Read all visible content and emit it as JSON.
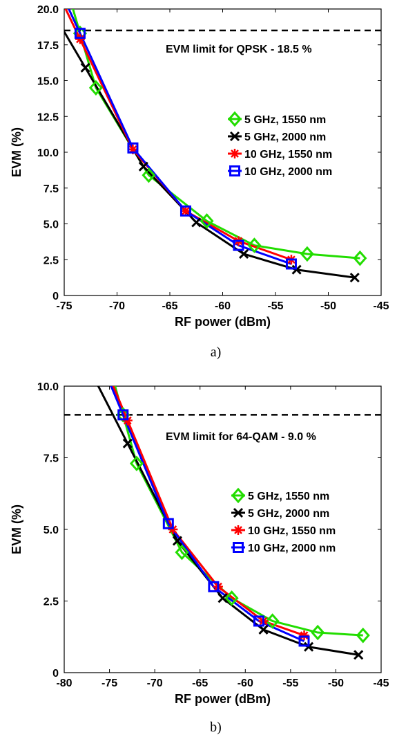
{
  "chart_data": [
    {
      "type": "line",
      "caption": "a)",
      "xlabel": "RF power (dBm)",
      "ylabel": "EVM (%)",
      "xlim": [
        -75,
        -45
      ],
      "ylim": [
        0,
        20
      ],
      "xticks": [
        "-75",
        "-70",
        "-65",
        "-60",
        "-55",
        "-50",
        "-45"
      ],
      "xtick_values": [
        -75,
        -70,
        -65,
        -60,
        -55,
        -50,
        -45
      ],
      "yticks": [
        "0",
        "2.5",
        "5.0",
        "7.5",
        "10.0",
        "12.5",
        "15.0",
        "17.5",
        "20.0"
      ],
      "ytick_values": [
        0,
        2.5,
        5,
        7.5,
        10,
        12.5,
        15,
        17.5,
        20
      ],
      "grid": false,
      "legend_placement": "right",
      "limit": {
        "value": 18.5,
        "label": "EVM limit for QPSK - 18.5 %"
      },
      "series": [
        {
          "name": "5 GHz, 1550 nm",
          "color": "#22dd00",
          "marker": "diamond",
          "x": [
            -73.5,
            -72,
            -67,
            -61.5,
            -57,
            -52,
            -47
          ],
          "y": [
            18.3,
            14.5,
            8.4,
            5.2,
            3.5,
            2.9,
            2.6
          ]
        },
        {
          "name": "5 GHz, 2000 nm",
          "color": "#000000",
          "marker": "x",
          "x": [
            -73,
            -67.5,
            -62.5,
            -58,
            -53,
            -47.5
          ],
          "y": [
            15.9,
            9.0,
            5.1,
            2.9,
            1.8,
            1.25
          ]
        },
        {
          "name": "10 GHz, 1550 nm",
          "color": "#ff0000",
          "marker": "asterisk",
          "x": [
            -73.5,
            -68.5,
            -63.5,
            -58.5,
            -53.5
          ],
          "y": [
            17.9,
            10.2,
            5.9,
            3.8,
            2.5
          ]
        },
        {
          "name": "10 GHz, 2000 nm",
          "color": "#0000ff",
          "marker": "square",
          "x": [
            -73.5,
            -68.5,
            -63.5,
            -58.5,
            -53.5
          ],
          "y": [
            18.3,
            10.3,
            5.9,
            3.5,
            2.2
          ]
        }
      ]
    },
    {
      "type": "line",
      "caption": "b)",
      "xlabel": "RF power (dBm)",
      "ylabel": "EVM (%)",
      "xlim": [
        -80,
        -45
      ],
      "ylim": [
        0,
        10
      ],
      "xticks": [
        "-80",
        "-75",
        "-70",
        "-65",
        "-60",
        "-55",
        "-50",
        "-45"
      ],
      "xtick_values": [
        -80,
        -75,
        -70,
        -65,
        -60,
        -55,
        -50,
        -45
      ],
      "yticks": [
        "0",
        "2.5",
        "5.0",
        "7.5",
        "10.0"
      ],
      "ytick_values": [
        0,
        2.5,
        5,
        7.5,
        10
      ],
      "grid": false,
      "legend_placement": "right",
      "limit": {
        "value": 9.0,
        "label": "EVM limit for 64-QAM - 9.0 %"
      },
      "series": [
        {
          "name": "5 GHz, 1550 nm",
          "color": "#22dd00",
          "marker": "diamond",
          "x": [
            -73.5,
            -72,
            -67,
            -61.5,
            -57,
            -52,
            -47
          ],
          "y": [
            9.0,
            7.3,
            4.2,
            2.6,
            1.8,
            1.4,
            1.3
          ]
        },
        {
          "name": "5 GHz, 2000 nm",
          "color": "#000000",
          "marker": "x",
          "x": [
            -73,
            -67.5,
            -62.5,
            -58,
            -53,
            -47.5
          ],
          "y": [
            8.0,
            4.6,
            2.6,
            1.5,
            0.9,
            0.62
          ]
        },
        {
          "name": "10 GHz, 1550 nm",
          "color": "#ff0000",
          "marker": "asterisk",
          "x": [
            -73,
            -68,
            -63,
            -58,
            -53.5
          ],
          "y": [
            8.8,
            5.0,
            3.0,
            1.8,
            1.3
          ]
        },
        {
          "name": "10 GHz, 2000 nm",
          "color": "#0000ff",
          "marker": "square",
          "x": [
            -73.5,
            -68.5,
            -63.5,
            -58.5,
            -53.5
          ],
          "y": [
            9.0,
            5.2,
            3.0,
            1.8,
            1.1
          ]
        }
      ]
    }
  ]
}
